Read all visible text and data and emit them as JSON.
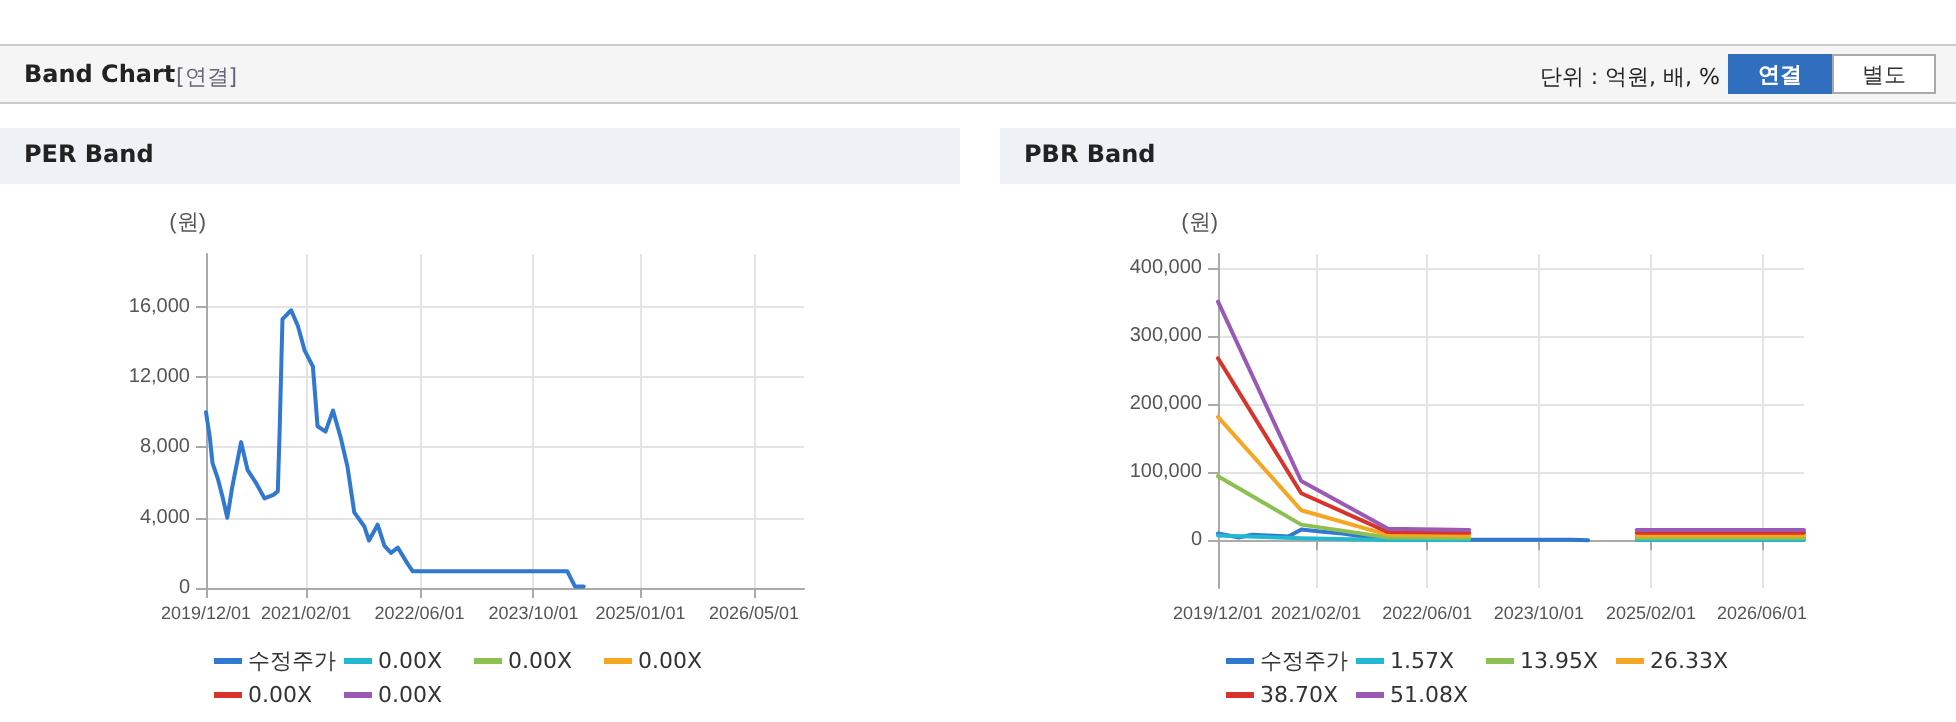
{
  "chart_data": [
    {
      "type": "other",
      "title": "Band Chart",
      "annotations": [
        "[연결]",
        "단위 : 억원, 배, %",
        "연결",
        "별도"
      ]
    },
    {
      "type": "line",
      "title": "PER Band",
      "ylabel": "(원)",
      "xlim": [
        "2019-12-01",
        "2026-12-01"
      ],
      "ylim": [
        0,
        19000
      ],
      "yticks": [
        {
          "value": 0,
          "label": "0"
        },
        {
          "value": 4000,
          "label": "4,000"
        },
        {
          "value": 8000,
          "label": "8,000"
        },
        {
          "value": 12000,
          "label": "12,000"
        },
        {
          "value": 16000,
          "label": "16,000"
        }
      ],
      "xticks": [
        {
          "value": "2019-12-01",
          "label": "2019/12/01"
        },
        {
          "value": "2021-02-01",
          "label": "2021/02/01"
        },
        {
          "value": "2022-06-01",
          "label": "2022/06/01"
        },
        {
          "value": "2023-10-01",
          "label": "2023/10/01"
        },
        {
          "value": "2025-01-01",
          "label": "2025/01/01"
        },
        {
          "value": "2026-05-01",
          "label": "2026/05/01"
        }
      ],
      "grid": true,
      "legend": "bottom",
      "marker": "none",
      "line_style": "solid",
      "series": [
        {
          "name": "수정주가",
          "color": "#3178d0",
          "x": [
            "2019-12-01",
            "2019-12-17",
            "2019-12-29",
            "2020-01-21",
            "2020-02-13",
            "2020-03-01",
            "2020-03-23",
            "2020-04-29",
            "2020-05-27",
            "2020-07-01",
            "2020-08-07",
            "2020-09-14",
            "2020-10-03",
            "2020-10-11",
            "2020-10-23",
            "2020-11-29",
            "2020-12-28",
            "2021-01-26",
            "2021-03-02",
            "2021-03-22",
            "2021-04-25",
            "2021-05-27",
            "2021-06-30",
            "2021-07-28",
            "2021-08-26",
            "2021-10-08",
            "2021-10-28",
            "2021-12-04",
            "2022-01-02",
            "2022-01-30",
            "2022-02-28",
            "2022-04-10",
            "2022-05-03",
            "2024-02-23",
            "2024-03-27",
            "2024-05-03"
          ],
          "values": [
            10000,
            8600,
            7100,
            6200,
            5000,
            4000,
            5800,
            8300,
            6700,
            6000,
            5100,
            5300,
            5500,
            9000,
            15300,
            15800,
            14900,
            13500,
            12600,
            9200,
            8900,
            10100,
            8500,
            6900,
            4300,
            3500,
            2700,
            3600,
            2400,
            2000,
            2300,
            1400,
            950,
            950,
            80,
            80
          ]
        },
        {
          "name": "0.00X",
          "color": "#22b8cf"
        },
        {
          "name": "0.00X",
          "color": "#8cc152"
        },
        {
          "name": "0.00X",
          "color": "#f5a623"
        },
        {
          "name": "0.00X",
          "color": "#d9342b"
        },
        {
          "name": "0.00X",
          "color": "#9b59b6"
        }
      ]
    },
    {
      "type": "line",
      "title": "PBR Band",
      "ylabel": "(원)",
      "xlim": [
        "2019-12-01",
        "2026-12-01"
      ],
      "ylim": [
        -70000,
        420000
      ],
      "yticks": [
        {
          "value": 0,
          "label": "0"
        },
        {
          "value": 100000,
          "label": "100,000"
        },
        {
          "value": 200000,
          "label": "200,000"
        },
        {
          "value": 300000,
          "label": "300,000"
        },
        {
          "value": 400000,
          "label": "400,000"
        }
      ],
      "xticks": [
        {
          "value": "2019-12-01",
          "label": "2019/12/01"
        },
        {
          "value": "2021-02-01",
          "label": "2021/02/01"
        },
        {
          "value": "2022-06-01",
          "label": "2022/06/01"
        },
        {
          "value": "2023-10-01",
          "label": "2023/10/01"
        },
        {
          "value": "2025-02-01",
          "label": "2025/02/01"
        },
        {
          "value": "2026-06-01",
          "label": "2026/06/01"
        }
      ],
      "grid": true,
      "legend": "bottom",
      "marker": "none",
      "line_style": "solid",
      "series": [
        {
          "name": "수정주가",
          "color": "#3178d0",
          "x": [
            "2019-12-01",
            "2020-03-01",
            "2020-04-29",
            "2020-10-03",
            "2020-11-29",
            "2021-03-02",
            "2021-05-27",
            "2021-10-08",
            "2022-01-30",
            "2022-05-03",
            "2024-02-23",
            "2024-05-03"
          ],
          "values": [
            10000,
            4000,
            8300,
            5500,
            15800,
            12600,
            10100,
            3500,
            2000,
            950,
            950,
            80
          ]
        },
        {
          "name": "1.57X",
          "color": "#22b8cf",
          "x": [
            "2019-12-01",
            "2020-11-28",
            "2021-12-12",
            "2022-12-01",
            "2023-06-01",
            "2024-12-01",
            "2026-12-01"
          ],
          "values": [
            7000,
            3000,
            500,
            400,
            null,
            400,
            400
          ]
        },
        {
          "name": "13.95X",
          "color": "#8cc152",
          "x": [
            "2019-12-01",
            "2020-11-28",
            "2021-12-12",
            "2022-12-01",
            "2023-06-01",
            "2024-12-01",
            "2026-12-01"
          ],
          "values": [
            94000,
            23000,
            4000,
            3500,
            null,
            3500,
            3500
          ]
        },
        {
          "name": "26.33X",
          "color": "#f5a623",
          "x": [
            "2019-12-01",
            "2020-11-28",
            "2021-12-12",
            "2022-12-01",
            "2023-06-01",
            "2024-12-01",
            "2026-12-01"
          ],
          "values": [
            181000,
            44000,
            8000,
            7000,
            null,
            7000,
            7000
          ]
        },
        {
          "name": "38.70X",
          "color": "#d9342b",
          "x": [
            "2019-12-01",
            "2020-11-28",
            "2021-12-12",
            "2022-12-01",
            "2023-06-01",
            "2024-12-01",
            "2026-12-01"
          ],
          "values": [
            267000,
            69000,
            12000,
            11000,
            null,
            11000,
            11000
          ]
        },
        {
          "name": "51.08X",
          "color": "#9b59b6",
          "x": [
            "2019-12-01",
            "2020-11-28",
            "2021-12-12",
            "2022-12-01",
            "2023-06-01",
            "2024-12-01",
            "2026-12-01"
          ],
          "values": [
            350000,
            87000,
            17000,
            15000,
            null,
            15000,
            15000
          ]
        }
      ]
    }
  ]
}
